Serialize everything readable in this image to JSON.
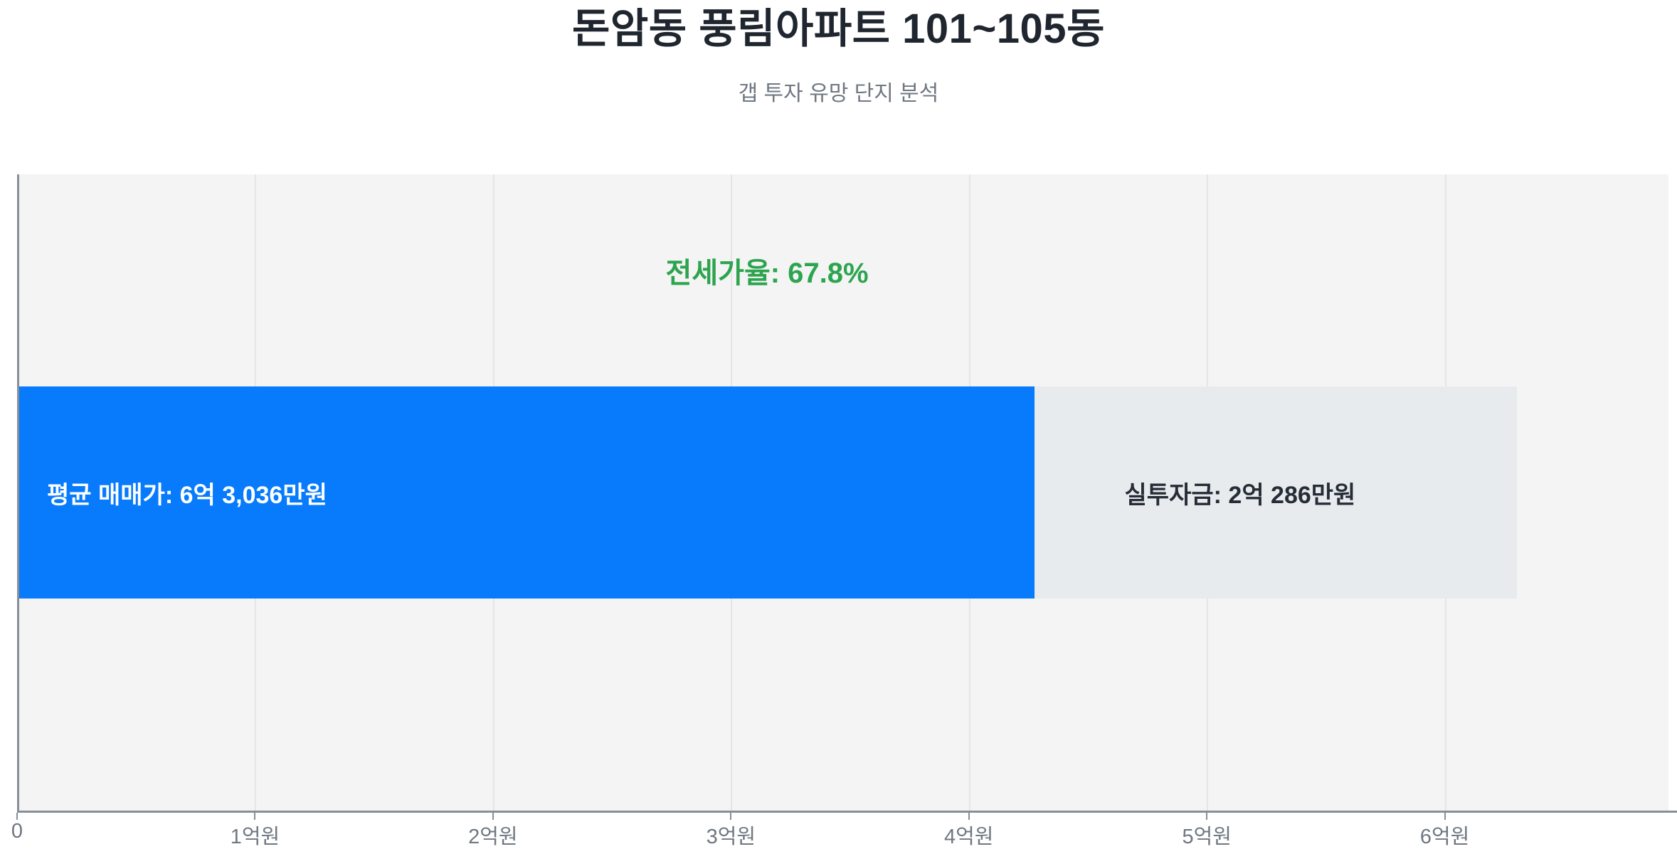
{
  "chart_data": {
    "type": "bar",
    "orientation": "horizontal-stacked",
    "title": "돈암동 풍림아파트 101~105동",
    "subtitle": "갭 투자 유망 단지 분석",
    "unit": "만원",
    "x_axis": {
      "max": 69400,
      "grid": true,
      "ticks": [
        {
          "value": 0,
          "label": "0"
        },
        {
          "value": 10000,
          "label": "1억원"
        },
        {
          "value": 20000,
          "label": "2억원"
        },
        {
          "value": 30000,
          "label": "3억원"
        },
        {
          "value": 40000,
          "label": "4억원"
        },
        {
          "value": 50000,
          "label": "5억원"
        },
        {
          "value": 60000,
          "label": "6억원"
        }
      ]
    },
    "total_bar": {
      "name": "평균 매매가",
      "value": 63036
    },
    "segments": [
      {
        "name": "전세가",
        "value": 42750,
        "color": "#077bfc",
        "label": "평균 매매가: 6억 3,036만원",
        "label_color": "#ffffff"
      },
      {
        "name": "실투자금",
        "value": 20286,
        "color": "#e7ebee",
        "label": "실투자금: 2억 286만원",
        "label_color": "#262d36"
      }
    ],
    "annotation": {
      "text": "전세가율: 67.8%",
      "color": "#2da44e",
      "position": "above-bar-center"
    },
    "jeonse_ratio_percent": 67.8,
    "colors": {
      "plot_background": "#f4f4f5",
      "gridline": "#e4e5e7",
      "axis_line": "#878e98",
      "title_text": "#20262f",
      "muted_text": "#6f7781"
    }
  }
}
